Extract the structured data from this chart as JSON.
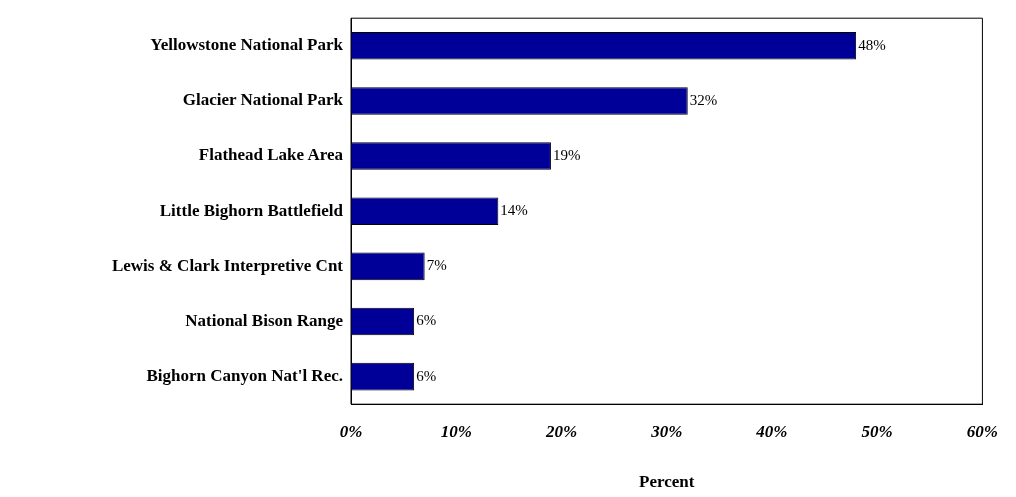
{
  "chart_data": {
    "type": "bar",
    "orientation": "horizontal",
    "categories": [
      "Yellowstone National Park",
      "Glacier National Park",
      "Flathead Lake Area",
      "Little Bighorn Battlefield",
      "Lewis & Clark Interpretive Cnt",
      "National Bison Range",
      "Bighorn Canyon Nat'l Rec."
    ],
    "values": [
      48,
      32,
      19,
      14,
      7,
      6,
      6
    ],
    "value_labels": [
      "48%",
      "32%",
      "19%",
      "14%",
      "7%",
      "6%",
      "6%"
    ],
    "color": "#000099",
    "xlabel": "Percent",
    "xlim": [
      0,
      60
    ],
    "xticks": [
      {
        "value": 0,
        "label": "0%"
      },
      {
        "value": 10,
        "label": "10%"
      },
      {
        "value": 20,
        "label": "20%"
      },
      {
        "value": 30,
        "label": "30%"
      },
      {
        "value": 40,
        "label": "40%"
      },
      {
        "value": 50,
        "label": "50%"
      },
      {
        "value": 60,
        "label": "60%"
      }
    ],
    "grid": false,
    "legend": false
  }
}
